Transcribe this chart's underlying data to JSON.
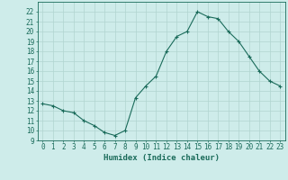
{
  "x": [
    0,
    1,
    2,
    3,
    4,
    5,
    6,
    7,
    8,
    9,
    10,
    11,
    12,
    13,
    14,
    15,
    16,
    17,
    18,
    19,
    20,
    21,
    22,
    23
  ],
  "y": [
    12.7,
    12.5,
    12.0,
    11.8,
    11.0,
    10.5,
    9.8,
    9.5,
    10.0,
    13.3,
    14.5,
    15.5,
    18.0,
    19.5,
    20.0,
    22.0,
    21.5,
    21.3,
    20.0,
    19.0,
    17.5,
    16.0,
    15.0,
    14.5
  ],
  "xlabel": "Humidex (Indice chaleur)",
  "ylim": [
    9,
    23
  ],
  "xlim": [
    -0.5,
    23.5
  ],
  "yticks": [
    9,
    10,
    11,
    12,
    13,
    14,
    15,
    16,
    17,
    18,
    19,
    20,
    21,
    22
  ],
  "xticks": [
    0,
    1,
    2,
    3,
    4,
    5,
    6,
    7,
    8,
    9,
    10,
    11,
    12,
    13,
    14,
    15,
    16,
    17,
    18,
    19,
    20,
    21,
    22,
    23
  ],
  "line_color": "#1a6b5a",
  "marker": "+",
  "bg_color": "#ceecea",
  "grid_color": "#b0d4d0",
  "label_color": "#1a6b5a",
  "tick_fontsize": 5.5,
  "xlabel_fontsize": 6.5
}
